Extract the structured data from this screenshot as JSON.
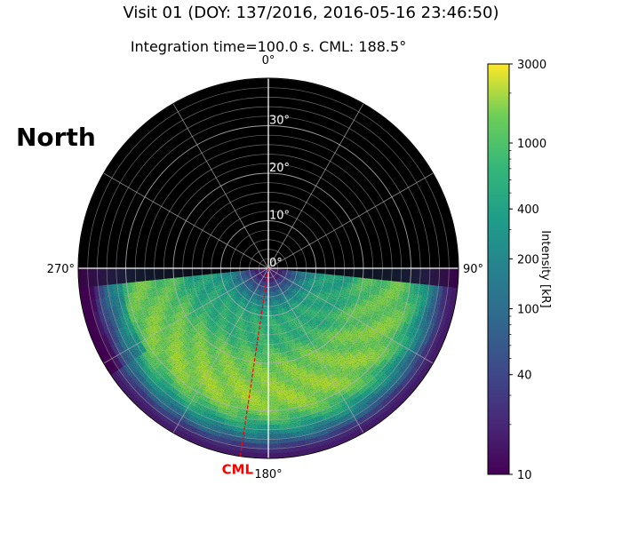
{
  "figure": {
    "title": "Visit 01 (DOY: 137/2016, 2016-05-16 23:46:50)",
    "subtitle": "Integration time=100.0 s. CML: 188.5°",
    "hemisphere_label": "North"
  },
  "chart_data": {
    "type": "heatmap",
    "projection": "polar",
    "title": "Visit 01 (DOY: 137/2016, 2016-05-16 23:46:50)",
    "subtitle": "Integration time=100.0 s. CML: 188.5°",
    "hemisphere": "North",
    "theta_ticks": [
      {
        "deg": 0,
        "label": "0°"
      },
      {
        "deg": 90,
        "label": "90°"
      },
      {
        "deg": 180,
        "label": "180°"
      },
      {
        "deg": 270,
        "label": "270°"
      }
    ],
    "radial_ticks": [
      {
        "colat": 0,
        "label": "0°"
      },
      {
        "colat": 10,
        "label": "10°"
      },
      {
        "colat": 20,
        "label": "20°"
      },
      {
        "colat": 30,
        "label": "30°"
      }
    ],
    "radial_max": 40,
    "cml": {
      "label": "CML",
      "longitude": 188.5,
      "color": "#ff0000"
    },
    "colorbar": {
      "label": "Intensity [kR]",
      "scale": "log",
      "range": [
        10,
        3000
      ],
      "colormap": "viridis",
      "ticks": [
        10,
        40,
        100,
        200,
        400,
        1000,
        3000
      ],
      "tick_labels": [
        "10",
        "40",
        "100",
        "200",
        "400",
        "1000",
        "3000"
      ]
    },
    "emission_sector": {
      "lon_range": [
        96,
        264
      ],
      "peak_intensity": 1500,
      "background": 15
    },
    "grid": true
  }
}
